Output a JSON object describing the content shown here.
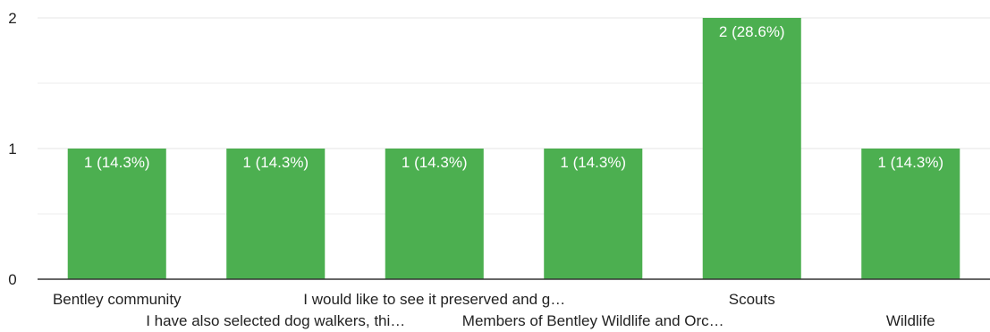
{
  "chart_data": {
    "type": "bar",
    "categories": [
      "Bentley community",
      "I have also selected dog walkers, thi…",
      "I would like to see it preserved and g…",
      "Members of Bentley Wildlife and Orc…",
      "Scouts",
      "Wildlife"
    ],
    "values": [
      1,
      1,
      1,
      1,
      2,
      1
    ],
    "data_labels": [
      "1 (14.3%)",
      "1 (14.3%)",
      "1 (14.3%)",
      "1 (14.3%)",
      "2 (28.6%)",
      "1 (14.3%)"
    ],
    "ylim": [
      0,
      2
    ],
    "yticks": [
      "0",
      "1",
      "2"
    ],
    "grid": true,
    "legend": "none",
    "bar_color": "#4caf50",
    "grid_color": "#e6e6e6",
    "axis_color": "#333333"
  }
}
